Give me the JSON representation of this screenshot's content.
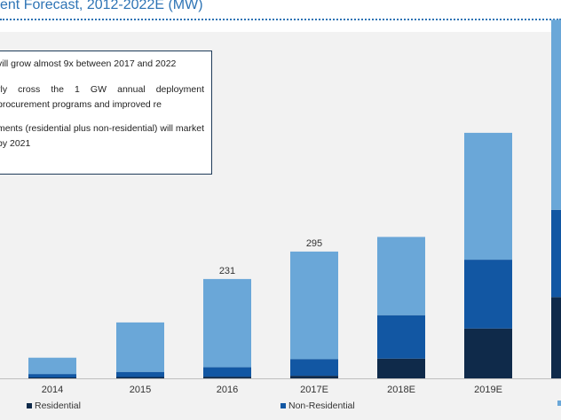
{
  "title": "ent Forecast, 2012-2022E (MW)",
  "notes": [
    "vill grow almost 9x between 2017 and 2022",
    "rly cross the 1 GW annual deployment procurement programs and improved re",
    "ments (residential plus non-residential) will market by 2021"
  ],
  "colors": {
    "residential": "#0f2a4a",
    "non_residential": "#1257a3",
    "third_series": "#6aa7d8",
    "title": "#2e74b5"
  },
  "chart_data": {
    "type": "bar",
    "stacked": true,
    "categories": [
      "2014",
      "2015",
      "2016",
      "2017E",
      "2018E",
      "2019E",
      ""
    ],
    "series": [
      {
        "name": "Residential",
        "values": [
          2,
          3,
          4,
          6,
          46,
          116,
          189
        ]
      },
      {
        "name": "Non-Residential",
        "values": [
          8,
          12,
          22,
          39,
          101,
          160,
          203
        ]
      },
      {
        "name": "",
        "values": [
          38,
          115,
          205,
          250,
          182,
          295,
          442
        ]
      }
    ],
    "data_labels": [
      "",
      "",
      "231",
      "295",
      "",
      "",
      ""
    ],
    "ylim": [
      0,
      880
    ],
    "legend": [
      {
        "label": "Residential",
        "color_key": "residential"
      },
      {
        "label": "Non-Residential",
        "color_key": "non_residential"
      }
    ],
    "legend_position": "bottom"
  }
}
